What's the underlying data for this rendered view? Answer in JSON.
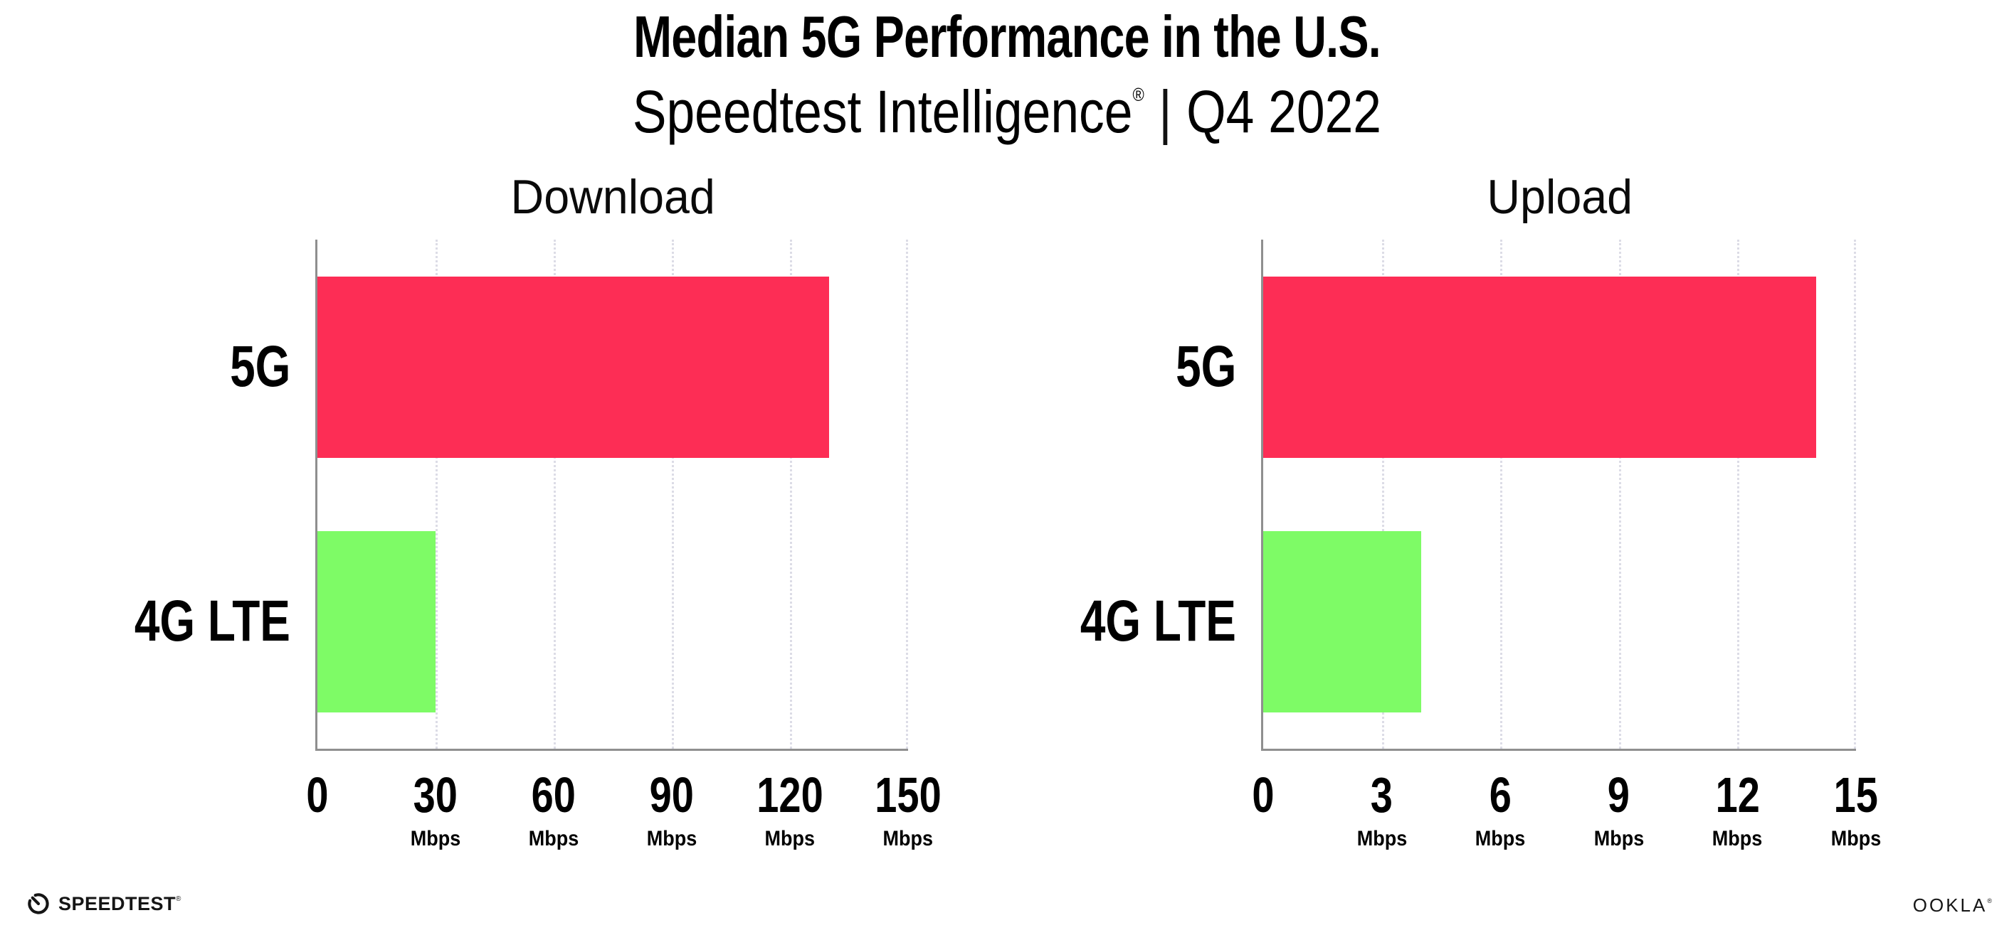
{
  "header": {
    "title": "Median 5G Performance in the U.S.",
    "subtitle_brand": "Speedtest Intelligence",
    "subtitle_reg": "®",
    "subtitle_divider": "|",
    "subtitle_period": "Q4 2022"
  },
  "chart_data": [
    {
      "type": "bar",
      "orientation": "horizontal",
      "title": "Download",
      "categories": [
        "5G",
        "4G LTE"
      ],
      "values": [
        130,
        30
      ],
      "unit": "Mbps",
      "xlim": [
        0,
        150
      ],
      "xticks": [
        0,
        30,
        60,
        90,
        120,
        150
      ],
      "bar_colors": [
        "#fd2d55",
        "#7efb66"
      ],
      "grid": "vertical-dotted",
      "legend": "none"
    },
    {
      "type": "bar",
      "orientation": "horizontal",
      "title": "Upload",
      "categories": [
        "5G",
        "4G LTE"
      ],
      "values": [
        14,
        4
      ],
      "unit": "Mbps",
      "xlim": [
        0,
        15
      ],
      "xticks": [
        0,
        3,
        6,
        9,
        12,
        15
      ],
      "bar_colors": [
        "#fd2d55",
        "#7efb66"
      ],
      "grid": "vertical-dotted",
      "legend": "none"
    }
  ],
  "footer": {
    "speedtest_wordmark": "SPEEDTEST",
    "speedtest_reg": "®",
    "ookla_wordmark": "OOKLA",
    "ookla_reg": "®"
  },
  "colors": {
    "bar_5g": "#fd2d55",
    "bar_4g_lte": "#7efb66",
    "axis": "#8f8f8f",
    "gridline": "#dcdce6",
    "text": "#000000",
    "background": "#ffffff"
  }
}
